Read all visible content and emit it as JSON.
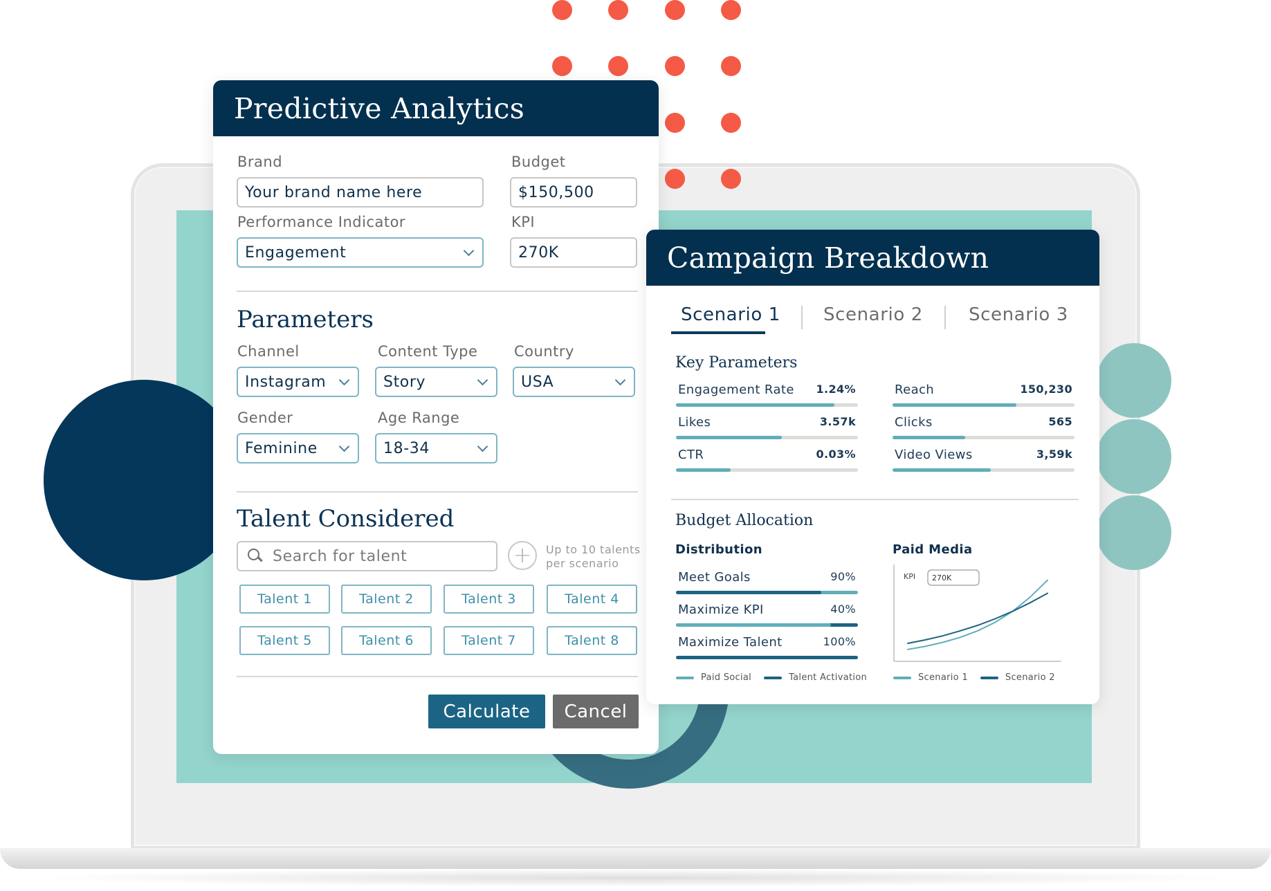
{
  "predictive": {
    "title": "Predictive Analytics",
    "brand_label": "Brand",
    "brand_placeholder": "Your brand name here",
    "budget_label": "Budget",
    "budget_value": "$150,500",
    "perf_label": "Performance Indicator",
    "perf_value": "Engagement",
    "kpi_label": "KPI",
    "kpi_value": "270K",
    "parameters_title": "Parameters",
    "channel_label": "Channel",
    "channel_value": "Instagram",
    "content_label": "Content Type",
    "content_value": "Story",
    "country_label": "Country",
    "country_value": "USA",
    "gender_label": "Gender",
    "gender_value": "Feminine",
    "age_label": "Age Range",
    "age_value": "18-34",
    "talent_title": "Talent Considered",
    "search_placeholder": "Search for talent",
    "add_symbol": "+",
    "hint_line1": "Up to 10 talents",
    "hint_line2": "per scenario",
    "talents": [
      "Talent 1",
      "Talent 2",
      "Talent 3",
      "Talent 4",
      "Talent 5",
      "Talent 6",
      "Talent 7",
      "Talent 8"
    ],
    "calculate_label": "Calculate",
    "cancel_label": "Cancel"
  },
  "campaign": {
    "title": "Campaign Breakdown",
    "tabs": [
      "Scenario 1",
      "Scenario 2",
      "Scenario 3"
    ],
    "active_tab": 0,
    "key_params_title": "Key Parameters",
    "metrics_left": [
      {
        "label": "Engagement Rate",
        "value": "1.24%",
        "fill": 0.87
      },
      {
        "label": "Likes",
        "value": "3.57k",
        "fill": 0.58
      },
      {
        "label": "CTR",
        "value": "0.03%",
        "fill": 0.3
      }
    ],
    "metrics_right": [
      {
        "label": "Reach",
        "value": "150,230",
        "fill": 0.68
      },
      {
        "label": "Clicks",
        "value": "565",
        "fill": 0.4
      },
      {
        "label": "Video Views",
        "value": "3,59k",
        "fill": 0.54
      }
    ],
    "budget_title": "Budget Allocation",
    "distribution_title": "Distribution",
    "distribution": [
      {
        "label": "Meet Goals",
        "value": "90%",
        "fill": 0.8
      },
      {
        "label": "Maximize KPI",
        "value": "40%",
        "fill": 0.85
      },
      {
        "label": "Maximize Talent",
        "value": "100%",
        "fill": 1.0
      }
    ],
    "legend_left": [
      {
        "label": "Paid Social",
        "color": "#61aeb9"
      },
      {
        "label": "Talent Activation",
        "color": "#1d6383"
      }
    ],
    "paid_media_title": "Paid Media",
    "kpi_tag_label": "KPI",
    "kpi_tag_value": "270K",
    "legend_right": [
      {
        "label": "Scenario 1",
        "color": "#61aeb9"
      },
      {
        "label": "Scenario 2",
        "color": "#1d6383"
      }
    ]
  },
  "chart_data": {
    "type": "line",
    "title": "Paid Media",
    "xlabel": "",
    "ylabel": "",
    "x": [
      0,
      1,
      2,
      3,
      4,
      5,
      6,
      7,
      8
    ],
    "series": [
      {
        "name": "Scenario 1",
        "color": "#61aeb9",
        "values": [
          1.0,
          1.6,
          2.4,
          3.4,
          4.7,
          6.4,
          8.6,
          11.4,
          14.8
        ]
      },
      {
        "name": "Scenario 2",
        "color": "#1d6383",
        "values": [
          2.2,
          2.9,
          3.7,
          4.7,
          5.8,
          7.1,
          8.6,
          10.3,
          12.2
        ]
      }
    ],
    "ylim": [
      0,
      16
    ],
    "grid": false
  },
  "colors": {
    "header_navy": "#04304f",
    "accent_teal": "#61aeb9",
    "accent_dark_teal": "#1d6383",
    "dot_coral": "#f45a45",
    "screen_teal": "#93d4cc"
  }
}
